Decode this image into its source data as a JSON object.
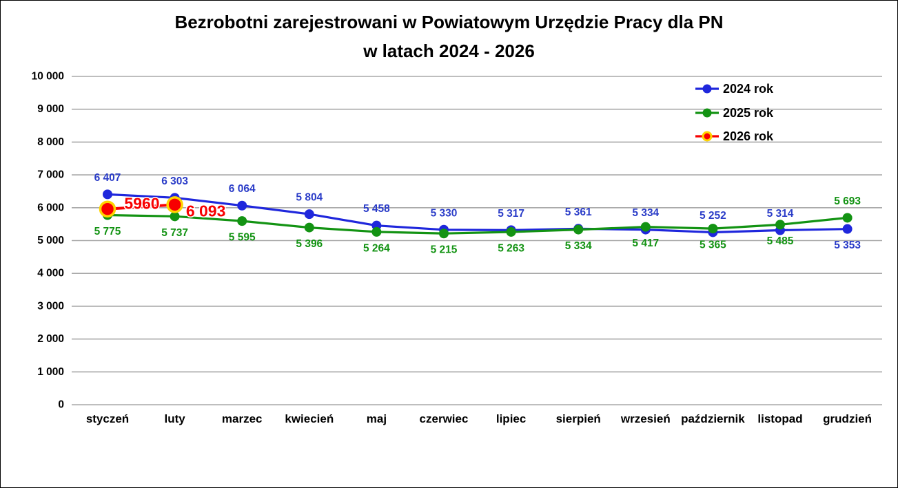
{
  "title": {
    "line1": "Bezrobotni zarejestrowani w Powiatowym Urzędzie Pracy dla PN",
    "line2": "w latach 2024 - 2026"
  },
  "colors": {
    "background": "#FFFFFF",
    "border": "#000000",
    "grid": "#A8A8A8",
    "axis_text": "#000000",
    "series_blue": "#1F27DC",
    "series_green": "#139313",
    "series_red": "#F80000",
    "red_marker_ring": "#FFD400"
  },
  "chart_data": {
    "type": "line",
    "title": "Bezrobotni zarejestrowani w Powiatowym Urzędzie Pracy dla PN w latach 2024 - 2026",
    "categories": [
      "styczeń",
      "luty",
      "marzec",
      "kwiecień",
      "maj",
      "czerwiec",
      "lipiec",
      "sierpień",
      "wrzesień",
      "październik",
      "listopad",
      "grudzień"
    ],
    "ylim": [
      0,
      10000
    ],
    "ytick_step": 1000,
    "ytick_labels": [
      "0",
      "1 000",
      "2 000",
      "3 000",
      "4 000",
      "5 000",
      "6 000",
      "7 000",
      "8 000",
      "9 000",
      "10 000"
    ],
    "grid": "horizontal",
    "legend_position": "top-right",
    "series": [
      {
        "name": "2024 rok",
        "color": "#1F27DC",
        "label_color": "#2A3CC8",
        "marker": "circle",
        "values": [
          6407,
          6303,
          6064,
          5804,
          5458,
          5330,
          5317,
          5361,
          5334,
          5252,
          5314,
          5353
        ],
        "labels": [
          "6 407",
          "6 303",
          "6 064",
          "5 804",
          "5 458",
          "5 330",
          "5 317",
          "5 361",
          "5 334",
          "5 252",
          "5 314",
          "5 353"
        ],
        "label_side": [
          "above",
          "above",
          "above",
          "above",
          "above",
          "above",
          "above",
          "above",
          "above",
          "above",
          "above",
          "below"
        ]
      },
      {
        "name": "2025 rok",
        "color": "#139313",
        "label_color": "#139313",
        "marker": "circle",
        "values": [
          5775,
          5737,
          5595,
          5396,
          5264,
          5215,
          5263,
          5334,
          5417,
          5365,
          5485,
          5693
        ],
        "labels": [
          "5 775",
          "5 737",
          "5 595",
          "5 396",
          "5 264",
          "5 215",
          "5 263",
          "5 334",
          "5 417",
          "5 365",
          "5 485",
          "5 693"
        ],
        "label_side": [
          "below",
          "below",
          "below",
          "below",
          "below",
          "below",
          "below",
          "below",
          "below",
          "below",
          "below",
          "above"
        ]
      },
      {
        "name": "2026 rok",
        "color": "#F80000",
        "label_color": "#F80000",
        "marker": "circle-ring",
        "marker_ring": "#FFD400",
        "values": [
          5960,
          6093,
          null,
          null,
          null,
          null,
          null,
          null,
          null,
          null,
          null,
          null
        ],
        "labels": [
          "5960",
          "6 093"
        ],
        "label_offsets": [
          {
            "dx": 50,
            "dy": -8
          },
          {
            "dx": 45,
            "dy": 9
          }
        ]
      }
    ]
  }
}
